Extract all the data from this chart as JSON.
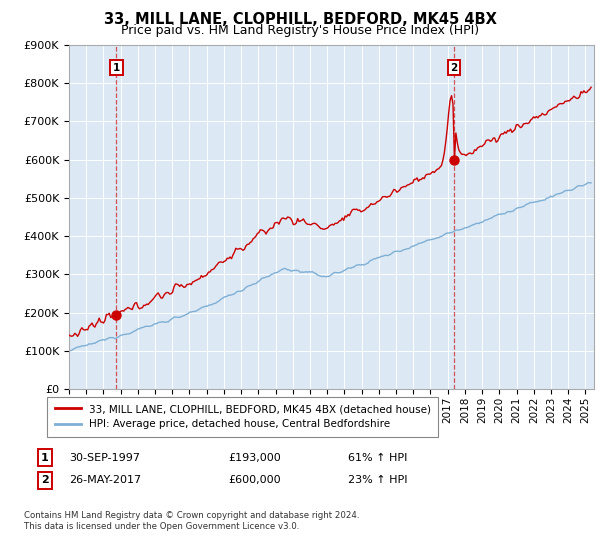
{
  "title": "33, MILL LANE, CLOPHILL, BEDFORD, MK45 4BX",
  "subtitle": "Price paid vs. HM Land Registry's House Price Index (HPI)",
  "ylim": [
    0,
    900000
  ],
  "xlim_start": 1995.0,
  "xlim_end": 2025.5,
  "yticks": [
    0,
    100000,
    200000,
    300000,
    400000,
    500000,
    600000,
    700000,
    800000,
    900000
  ],
  "ytick_labels": [
    "£0",
    "£100K",
    "£200K",
    "£300K",
    "£400K",
    "£500K",
    "£600K",
    "£700K",
    "£800K",
    "£900K"
  ],
  "sale1_date": 1997.75,
  "sale1_price": 193000,
  "sale1_label": "1",
  "sale1_text": "30-SEP-1997",
  "sale1_amount": "£193,000",
  "sale1_hpi": "61% ↑ HPI",
  "sale2_date": 2017.37,
  "sale2_price": 600000,
  "sale2_label": "2",
  "sale2_text": "26-MAY-2017",
  "sale2_amount": "£600,000",
  "sale2_hpi": "23% ↑ HPI",
  "line1_color": "#cc0000",
  "line2_color": "#7fafd4",
  "line1_label": "33, MILL LANE, CLOPHILL, BEDFORD, MK45 4BX (detached house)",
  "line2_label": "HPI: Average price, detached house, Central Bedfordshire",
  "footnote1": "Contains HM Land Registry data © Crown copyright and database right 2024.",
  "footnote2": "This data is licensed under the Open Government Licence v3.0.",
  "plot_bg_color": "#dce9f5",
  "fig_bg_color": "#ffffff",
  "grid_color": "#ffffff",
  "title_fontsize": 10.5,
  "subtitle_fontsize": 9.0
}
